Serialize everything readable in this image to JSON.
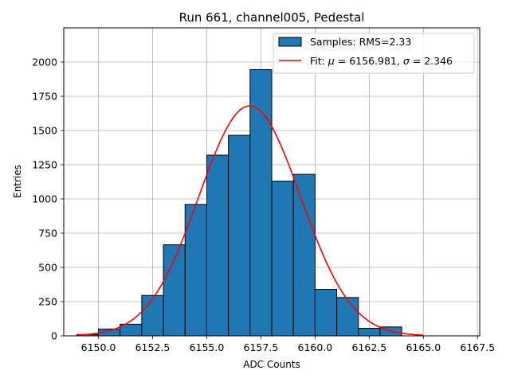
{
  "chart_data": {
    "type": "bar",
    "title": "Run 661, channel005, Pedestal",
    "xlabel": "ADC Counts",
    "ylabel": "Entries",
    "xlim": [
      6148.4,
      6167.6
    ],
    "ylim": [
      0,
      2250
    ],
    "grid": true,
    "legend_position": "top-right",
    "xticks": [
      6150.0,
      6152.5,
      6155.0,
      6157.5,
      6160.0,
      6162.5,
      6165.0,
      6167.5
    ],
    "xtick_labels": [
      "6150.0",
      "6152.5",
      "6155.0",
      "6157.5",
      "6160.0",
      "6162.5",
      "6165.0",
      "6167.5"
    ],
    "yticks": [
      0,
      250,
      500,
      750,
      1000,
      1250,
      1500,
      1750,
      2000
    ],
    "ytick_labels": [
      "0",
      "250",
      "500",
      "750",
      "1000",
      "1250",
      "1500",
      "1750",
      "2000"
    ],
    "histogram": {
      "name": "Samples: RMS=2.33",
      "color": "#1f77b4",
      "edge_color": "#000000",
      "bin_edges": [
        6149.0,
        6150.0,
        6151.0,
        6152.0,
        6153.0,
        6154.0,
        6155.0,
        6156.0,
        6157.0,
        6158.0,
        6159.0,
        6160.0,
        6161.0,
        6162.0,
        6163.0,
        6164.0
      ],
      "values": [
        10,
        50,
        85,
        295,
        665,
        960,
        1320,
        1465,
        1945,
        1130,
        1180,
        340,
        280,
        55,
        65
      ]
    },
    "fit": {
      "name_prefix": "Fit: ",
      "mu_label": "μ",
      "mu_value": "6156.981",
      "sigma_label": "σ",
      "sigma_value": "2.346",
      "color": "#ff0000",
      "mu": 6156.981,
      "sigma": 2.346,
      "amplitude": 1680,
      "x_range": [
        6149.0,
        6165.0
      ]
    }
  }
}
